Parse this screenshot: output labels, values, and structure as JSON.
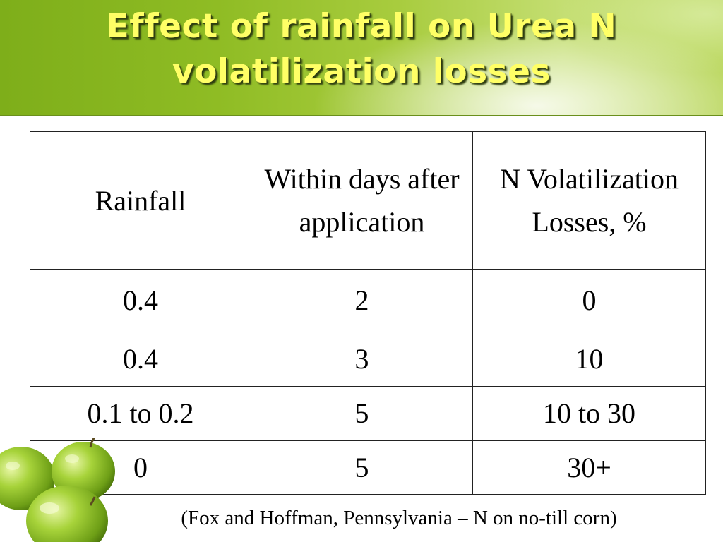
{
  "slide": {
    "title": "Effect of rainfall on Urea N volatilization losses",
    "caption": "(Fox and Hoffman, Pennsylvania – N on no-till corn)"
  },
  "table": {
    "headers": [
      "Rainfall",
      "Within days after application",
      "N Volatilization Losses, %"
    ],
    "rows": [
      [
        "0.4",
        "2",
        "0"
      ],
      [
        "0.4",
        "3",
        "10"
      ],
      [
        "0.1 to 0.2",
        "5",
        "10 to 30"
      ],
      [
        "0",
        "5",
        "30+"
      ]
    ]
  },
  "decoration": {
    "apples_icon": "green-apples-icon",
    "header_color": "#8fbc24",
    "title_color": "#ffff66"
  }
}
